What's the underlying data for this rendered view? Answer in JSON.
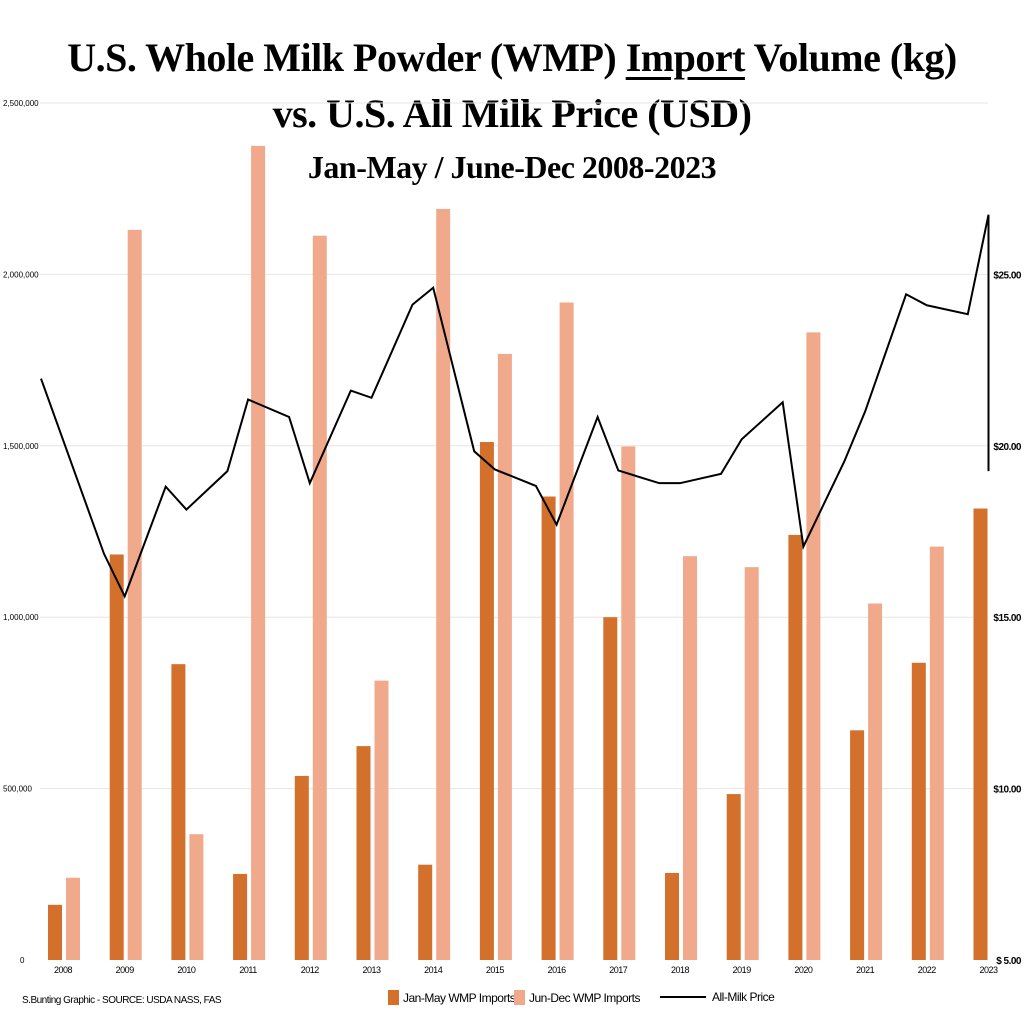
{
  "title": {
    "line1_pre": "U.S. Whole Milk Powder (WMP) ",
    "line1_underlined": "Import",
    "line1_post": " Volume (kg)",
    "line2": "vs. U.S. All Milk Price (USD)",
    "line3": "Jan-May / June-Dec 2008-2023"
  },
  "credit": "S.Bunting Graphic - SOURCE: USDA NASS, FAS",
  "colors": {
    "jan_may": "#D2702C",
    "jun_dec": "#F0A98A",
    "price": "#000000",
    "grid": "#E6E6E6"
  },
  "chart_data": {
    "type": "bar+line",
    "categories": [
      "2008",
      "2009",
      "2010",
      "2011",
      "2012",
      "2013",
      "2014",
      "2015",
      "2016",
      "2017",
      "2018",
      "2019",
      "2020",
      "2021",
      "2022",
      "2023"
    ],
    "left_axis": {
      "ylim": [
        0,
        2500000
      ],
      "ticks": [
        "0",
        "500,000",
        "1,000,000",
        "1,500,000",
        "2,000,000",
        "2,500,000"
      ],
      "tick_values": [
        0,
        500000,
        1000000,
        1500000,
        2000000,
        2500000
      ]
    },
    "right_axis": {
      "ylim": [
        5,
        30
      ],
      "ticks": [
        "$ 5.00",
        "$10.00",
        "$15.00",
        "$20.00",
        "$25.00"
      ],
      "tick_values": [
        5,
        10,
        15,
        20,
        25
      ]
    },
    "grid": true,
    "legend_position": "bottom",
    "series": [
      {
        "name": "Jan-May WMP Imports",
        "type": "bar",
        "axis": "left",
        "values": [
          161000,
          1183000,
          863000,
          251000,
          537000,
          624000,
          278000,
          1511000,
          1352000,
          1000000,
          254000,
          484000,
          1240000,
          670000,
          867000,
          1317000
        ]
      },
      {
        "name": "Jun-Dec WMP Imports",
        "type": "bar",
        "axis": "left",
        "values": [
          240000,
          2130000,
          367000,
          2375000,
          2113000,
          815000,
          2191000,
          1768000,
          1918000,
          1498000,
          1178000,
          1146000,
          1831000,
          1040000,
          1206000,
          null
        ]
      },
      {
        "name": "All-Milk Price",
        "type": "line",
        "axis": "right",
        "points": [
          {
            "year": "2008",
            "period": "Jan-May",
            "value": 21.96
          },
          {
            "year": "2008",
            "period": "Jun-Dec",
            "value": 16.85
          },
          {
            "year": "2009",
            "period": "Jan-May",
            "value": 15.61
          },
          {
            "year": "2009",
            "period": "Jun-Dec",
            "value": 18.81
          },
          {
            "year": "2010",
            "period": "Jan-May",
            "value": 18.14
          },
          {
            "year": "2010",
            "period": "Jun-Dec",
            "value": 19.26
          },
          {
            "year": "2011",
            "period": "Jan-May",
            "value": 21.35
          },
          {
            "year": "2011",
            "period": "Jun-Dec",
            "value": 20.84
          },
          {
            "year": "2012",
            "period": "Jan-May",
            "value": 18.91
          },
          {
            "year": "2012",
            "period": "Jun-Dec",
            "value": 21.61
          },
          {
            "year": "2013",
            "period": "Jan-May",
            "value": 21.4
          },
          {
            "year": "2013",
            "period": "Jun-Dec",
            "value": 24.12
          },
          {
            "year": "2014",
            "period": "Jan-May",
            "value": 24.61
          },
          {
            "year": "2014",
            "period": "Jun-Dec",
            "value": 19.84
          },
          {
            "year": "2015",
            "period": "Jan-May",
            "value": 19.31
          },
          {
            "year": "2015",
            "period": "Jun-Dec",
            "value": 18.83
          },
          {
            "year": "2016",
            "period": "Jan-May",
            "value": 17.7
          },
          {
            "year": "2016",
            "period": "Jun-Dec",
            "value": 20.84
          },
          {
            "year": "2017",
            "period": "Jan-May",
            "value": 19.28
          },
          {
            "year": "2017",
            "period": "Jun-Dec",
            "value": 18.91
          },
          {
            "year": "2018",
            "period": "Jan-May",
            "value": 18.91
          },
          {
            "year": "2018",
            "period": "Jun-Dec",
            "value": 19.18
          },
          {
            "year": "2019",
            "period": "Jan-May",
            "value": 20.19
          },
          {
            "year": "2019",
            "period": "Jun-Dec",
            "value": 21.27
          },
          {
            "year": "2020",
            "period": "Jan-May",
            "value": 17.06
          },
          {
            "year": "2020",
            "period": "Jun-Dec",
            "value": 19.55
          },
          {
            "year": "2021",
            "period": "Jan-May",
            "value": 21.0
          },
          {
            "year": "2021",
            "period": "Jun-Dec",
            "value": 24.42
          },
          {
            "year": "2022",
            "period": "Jan-May",
            "value": 24.1
          },
          {
            "year": "2022",
            "period": "Jun-Dec",
            "value": 23.84
          },
          {
            "year": "2023",
            "period": "Jan-May",
            "value": 26.74
          },
          {
            "year": "2023",
            "period": "Jun-Dec",
            "value": 19.26
          }
        ]
      }
    ]
  }
}
